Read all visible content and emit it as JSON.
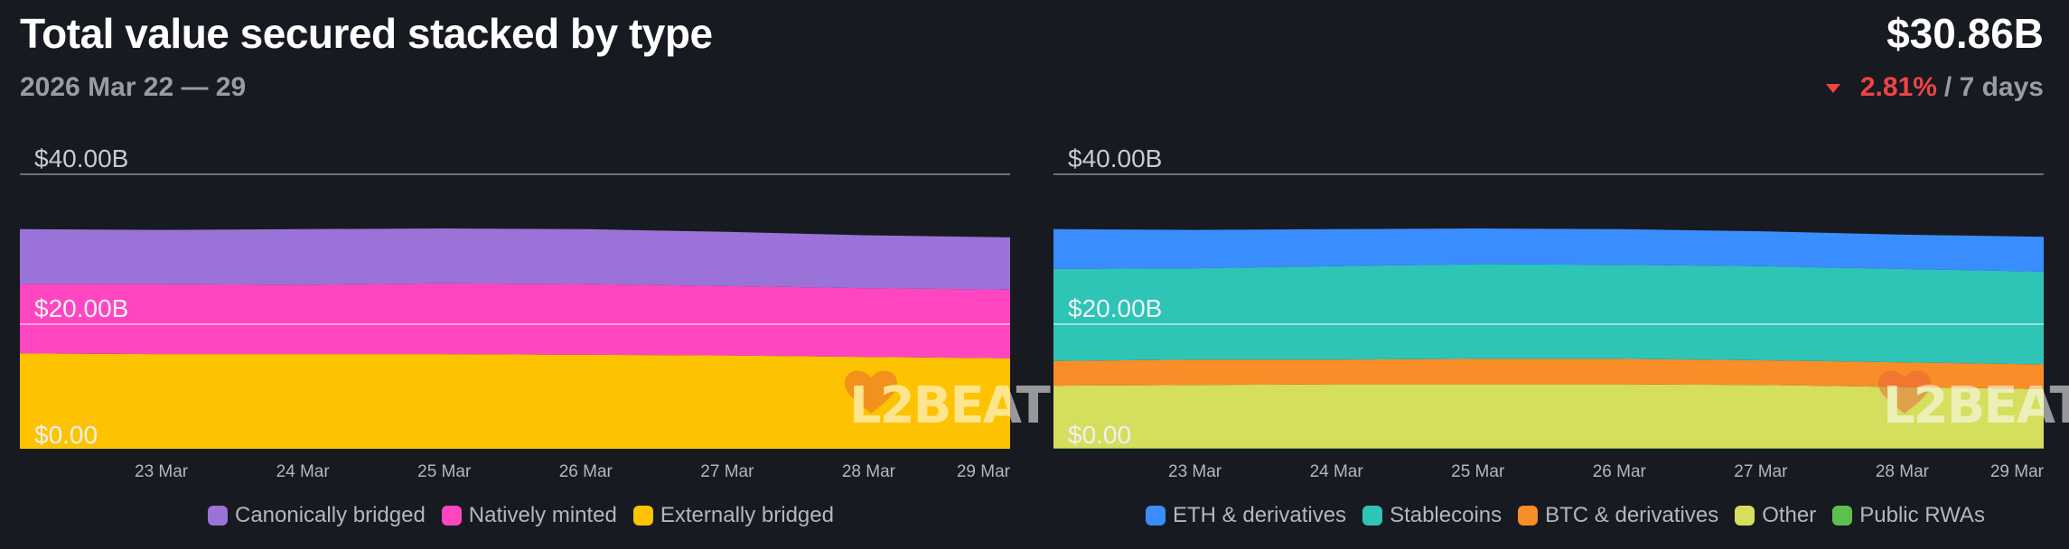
{
  "header": {
    "title": "Total value secured stacked by type",
    "date_range": "2026 Mar 22 — 29",
    "total": "$30.86B",
    "change_pct": "2.81%",
    "change_period": "/ 7 days",
    "change_direction": "down",
    "change_color": "#ef4444"
  },
  "watermark": "L2BEAT",
  "chart_data": [
    {
      "type": "area",
      "stacked": true,
      "y_ticks": [
        "$40.00B",
        "$20.00B",
        "$0.00"
      ],
      "ylim": [
        0,
        40
      ],
      "x_ticks": [
        "23 Mar",
        "24 Mar",
        "25 Mar",
        "26 Mar",
        "27 Mar",
        "28 Mar",
        "29 Mar"
      ],
      "x": [
        "22 Mar",
        "23 Mar",
        "24 Mar",
        "25 Mar",
        "26 Mar",
        "27 Mar",
        "28 Mar",
        "29 Mar"
      ],
      "series": [
        {
          "name": "Externally bridged",
          "color": "#fdc300",
          "values": [
            13.9,
            13.8,
            13.8,
            13.8,
            13.7,
            13.6,
            13.4,
            13.2
          ]
        },
        {
          "name": "Natively minted",
          "color": "#ff46c0",
          "values": [
            10.1,
            10.2,
            10.1,
            10.3,
            10.3,
            10.1,
            10.0,
            10.0
          ]
        },
        {
          "name": "Canonically bridged",
          "color": "#9a72d8",
          "values": [
            8.0,
            7.9,
            8.1,
            8.0,
            8.0,
            7.9,
            7.7,
            7.6
          ]
        }
      ],
      "legend": [
        "Canonically bridged",
        "Natively minted",
        "Externally bridged"
      ],
      "legend_colors": [
        "#9a72d8",
        "#ff46c0",
        "#fdc300"
      ]
    },
    {
      "type": "area",
      "stacked": true,
      "y_ticks": [
        "$40.00B",
        "$20.00B",
        "$0.00"
      ],
      "ylim": [
        0,
        40
      ],
      "x_ticks": [
        "23 Mar",
        "24 Mar",
        "25 Mar",
        "26 Mar",
        "27 Mar",
        "28 Mar",
        "29 Mar"
      ],
      "x": [
        "22 Mar",
        "23 Mar",
        "24 Mar",
        "25 Mar",
        "26 Mar",
        "27 Mar",
        "28 Mar",
        "29 Mar"
      ],
      "series": [
        {
          "name": "Public RWAs",
          "color": "#5fbf4e",
          "values": [
            0.1,
            0.1,
            0.1,
            0.1,
            0.1,
            0.1,
            0.1,
            0.1
          ]
        },
        {
          "name": "Other",
          "color": "#d6de5d",
          "values": [
            9.1,
            9.2,
            9.3,
            9.3,
            9.3,
            9.2,
            8.9,
            8.6
          ]
        },
        {
          "name": "BTC & derivatives",
          "color": "#f98d27",
          "values": [
            3.6,
            3.7,
            3.6,
            3.7,
            3.7,
            3.6,
            3.6,
            3.6
          ]
        },
        {
          "name": "Stablecoins",
          "color": "#2ec4b6",
          "values": [
            13.4,
            13.3,
            13.6,
            13.8,
            13.7,
            13.7,
            13.6,
            13.5
          ]
        },
        {
          "name": "ETH & derivatives",
          "color": "#3a8dff",
          "values": [
            5.8,
            5.6,
            5.4,
            5.2,
            5.2,
            5.1,
            5.0,
            5.1
          ]
        }
      ],
      "legend": [
        "ETH & derivatives",
        "Stablecoins",
        "BTC & derivatives",
        "Other",
        "Public RWAs"
      ],
      "legend_colors": [
        "#3a8dff",
        "#2ec4b6",
        "#f98d27",
        "#d6de5d",
        "#5fbf4e"
      ]
    }
  ]
}
